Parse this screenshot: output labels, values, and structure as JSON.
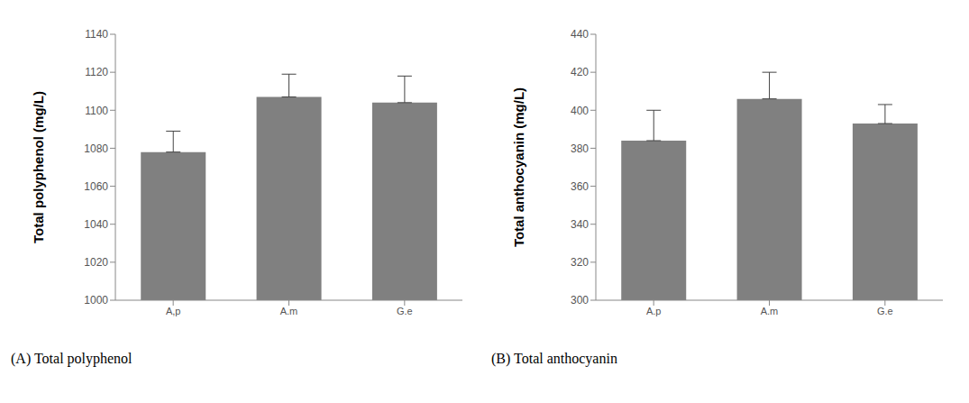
{
  "chart_data": [
    {
      "type": "bar",
      "title": "(A) Total polyphenol",
      "y_label": "Total polyphenol (mg/L)",
      "categories": [
        "A,p",
        "A.m",
        "G.e"
      ],
      "values": [
        1078,
        1107,
        1104
      ],
      "errors": [
        11,
        12,
        14
      ],
      "color": "#808080",
      "ylim": [
        1000,
        1140
      ],
      "yticks": [
        1000,
        1020,
        1040,
        1060,
        1080,
        1100,
        1120,
        1140
      ],
      "grid": false
    },
    {
      "type": "bar",
      "title": "(B) Total anthocyanin",
      "y_label": "Total anthocyanin (mg/L)",
      "categories": [
        "A.p",
        "A.m",
        "G.e"
      ],
      "values": [
        384,
        406,
        393
      ],
      "errors": [
        16,
        14,
        10
      ],
      "color": "#808080",
      "ylim": [
        300,
        440
      ],
      "yticks": [
        300,
        320,
        340,
        360,
        380,
        400,
        420,
        440
      ],
      "grid": false
    }
  ]
}
